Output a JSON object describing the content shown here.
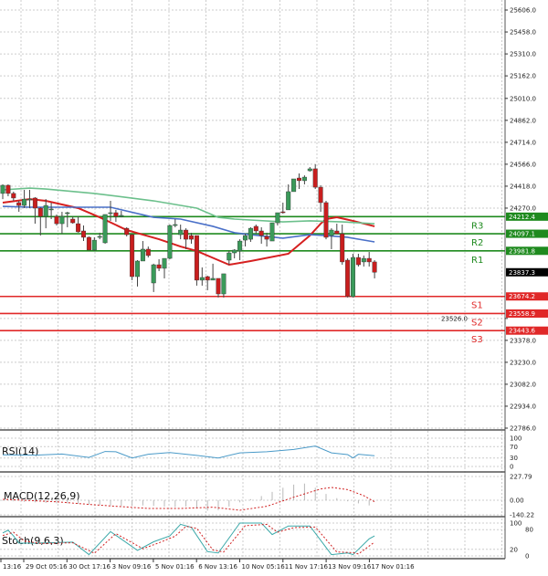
{
  "colors": {
    "bull": "#3a9a5a",
    "bear": "#c81e1e",
    "resistance": "#1e8a1e",
    "support": "#e02828",
    "ma_fast": "#d62020",
    "ma_mid": "#4a70c8",
    "ma_slow": "#6cc08c",
    "rsi": "#4a9ac8",
    "macd_hist": "#b8b8b8",
    "macd_signal": "#d02020",
    "stoch_k": "#3aa8a8",
    "stoch_d": "#d02020",
    "current_price": "#000000"
  },
  "chart_data": {
    "type": "candlestick",
    "price_axis": {
      "range": [
        22786.0,
        25606.0
      ],
      "ticks": [
        "25606.0",
        "25458.0",
        "25310.0",
        "25162.0",
        "25010.0",
        "24862.0",
        "24714.0",
        "24566.0",
        "24418.0",
        "24270.0",
        "23526.0",
        "23378.0",
        "23230.0",
        "23082.0",
        "22934.0",
        "22786.0"
      ]
    },
    "time_axis": {
      "ticks": [
        "13:16",
        "29 Oct 05:16",
        "30 Oct 17:16",
        "3 Nov 09:16",
        "5 Nov 01:16",
        "6 Nov 13:16",
        "10 Nov 05:16",
        "11 Nov 17:16",
        "13 Nov 09:16",
        "17 Nov 01:16"
      ]
    },
    "candles_ohlc": [
      [
        24369,
        24430,
        24331,
        24424
      ],
      [
        24424,
        24430,
        24350,
        24369
      ],
      [
        24369,
        24381,
        24319,
        24338
      ],
      [
        24307,
        24319,
        24245,
        24288
      ],
      [
        24288,
        24393,
        24270,
        24331
      ],
      [
        24325,
        24393,
        24270,
        24331
      ],
      [
        24338,
        24344,
        24165,
        24270
      ],
      [
        24270,
        24276,
        24085,
        24214
      ],
      [
        24214,
        24331,
        24134,
        24288
      ],
      [
        24258,
        24307,
        24196,
        24264
      ],
      [
        24214,
        24227,
        24153,
        24165
      ],
      [
        24165,
        24245,
        24097,
        24214
      ],
      [
        24233,
        24245,
        24141,
        24239
      ],
      [
        24196,
        24214,
        24165,
        24171
      ],
      [
        24165,
        24214,
        24104,
        24110
      ],
      [
        24116,
        24153,
        24048,
        24073
      ],
      [
        24073,
        24079,
        23987,
        23987
      ],
      [
        23987,
        24073,
        23981,
        24054
      ],
      [
        24073,
        24104,
        24060,
        24079
      ],
      [
        24036,
        24227,
        24030,
        24227
      ],
      [
        24233,
        24319,
        24184,
        24239
      ],
      [
        24239,
        24258,
        24177,
        24214
      ],
      [
        24214,
        24251,
        24208,
        24221
      ],
      [
        24134,
        24141,
        24079,
        24091
      ],
      [
        24091,
        24097,
        23784,
        23808
      ],
      [
        23808,
        23919,
        23741,
        23913
      ],
      [
        23913,
        24048,
        23913,
        23993
      ],
      [
        23993,
        24011,
        23937,
        23950
      ],
      [
        23765,
        23895,
        23704,
        23888
      ],
      [
        23888,
        23925,
        23845,
        23864
      ],
      [
        23864,
        23931,
        23796,
        23931
      ],
      [
        23931,
        24159,
        23925,
        24153
      ],
      [
        24153,
        24196,
        24141,
        24159
      ],
      [
        24091,
        24159,
        24060,
        24122
      ],
      [
        24122,
        24134,
        23993,
        24060
      ],
      [
        24085,
        24104,
        24030,
        24060
      ],
      [
        24085,
        24085,
        23747,
        23784
      ],
      [
        23784,
        23870,
        23747,
        23802
      ],
      [
        23808,
        23814,
        23716,
        23784
      ],
      [
        23784,
        23895,
        23784,
        23796
      ],
      [
        23796,
        23796,
        23667,
        23691
      ],
      [
        23691,
        23827,
        23667,
        23827
      ],
      [
        23919,
        23981,
        23888,
        23968
      ],
      [
        23968,
        23993,
        23931,
        23987
      ],
      [
        23981,
        24060,
        23919,
        24048
      ],
      [
        24054,
        24097,
        24011,
        24085
      ],
      [
        24060,
        24141,
        24042,
        24134
      ],
      [
        24147,
        24159,
        24097,
        24116
      ],
      [
        24116,
        24141,
        24030,
        24085
      ],
      [
        24079,
        24104,
        24011,
        24060
      ],
      [
        24048,
        24171,
        24048,
        24171
      ],
      [
        24171,
        24239,
        24153,
        24239
      ],
      [
        24245,
        24307,
        24233,
        24239
      ],
      [
        24258,
        24430,
        24258,
        24381
      ],
      [
        24381,
        24467,
        24381,
        24467
      ],
      [
        24473,
        24504,
        24399,
        24455
      ],
      [
        24455,
        24491,
        24430,
        24479
      ],
      [
        24522,
        24547,
        24516,
        24535
      ],
      [
        24535,
        24565,
        24399,
        24411
      ],
      [
        24411,
        24424,
        24245,
        24307
      ],
      [
        24307,
        24319,
        24060,
        24073
      ],
      [
        24085,
        24134,
        23993,
        24122
      ],
      [
        24116,
        24165,
        24097,
        24097
      ],
      [
        24097,
        24159,
        23888,
        23907
      ],
      [
        23919,
        23931,
        23667,
        23673
      ],
      [
        23673,
        23962,
        23667,
        23937
      ],
      [
        23937,
        23962,
        23876,
        23888
      ],
      [
        23907,
        23950,
        23876,
        23931
      ],
      [
        23931,
        23974,
        23876,
        23907
      ],
      [
        23907,
        23919,
        23796,
        23837.3
      ]
    ],
    "moving_averages": [
      {
        "key": "ma_fast",
        "points": [
          [
            1,
            24307
          ],
          [
            6,
            24331
          ],
          [
            9,
            24319
          ],
          [
            15,
            24270
          ],
          [
            19,
            24208
          ],
          [
            24,
            24122
          ],
          [
            30,
            24060
          ],
          [
            34,
            24011
          ],
          [
            37,
            23981
          ],
          [
            41,
            23919
          ],
          [
            43,
            23888
          ],
          [
            47,
            23913
          ],
          [
            54,
            23962
          ],
          [
            58,
            24085
          ],
          [
            60,
            24165
          ],
          [
            61,
            24196
          ],
          [
            63,
            24208
          ],
          [
            66,
            24184
          ],
          [
            70,
            24147
          ]
        ]
      },
      {
        "key": "ma_mid",
        "points": [
          [
            1,
            24282
          ],
          [
            6,
            24276
          ],
          [
            21,
            24276
          ],
          [
            29,
            24208
          ],
          [
            34,
            24196
          ],
          [
            40,
            24147
          ],
          [
            44,
            24104
          ],
          [
            47,
            24091
          ],
          [
            53,
            24067
          ],
          [
            58,
            24091
          ],
          [
            61,
            24085
          ],
          [
            65,
            24073
          ],
          [
            70,
            24042
          ]
        ]
      },
      {
        "key": "ma_slow",
        "points": [
          [
            1,
            24393
          ],
          [
            6,
            24405
          ],
          [
            9,
            24399
          ],
          [
            18,
            24369
          ],
          [
            29,
            24319
          ],
          [
            37,
            24270
          ],
          [
            41,
            24208
          ],
          [
            44,
            24196
          ],
          [
            53,
            24177
          ],
          [
            58,
            24184
          ],
          [
            64,
            24177
          ],
          [
            70,
            24165
          ]
        ]
      }
    ],
    "levels": [
      {
        "name": "R3",
        "price": "24212.4",
        "kind": "resistance"
      },
      {
        "name": "R2",
        "price": "24097.1",
        "kind": "resistance"
      },
      {
        "name": "R1",
        "price": "23981.8",
        "kind": "resistance"
      },
      {
        "name": "S1",
        "price": "23674.2",
        "kind": "support"
      },
      {
        "name": "S2",
        "price": "23558.9",
        "kind": "support"
      },
      {
        "name": "S3",
        "price": "23443.6",
        "kind": "support"
      }
    ],
    "current_price": "23837.3",
    "rsi": {
      "title": "RSI(14)",
      "ticks": [
        "100",
        "70",
        "30",
        "0"
      ],
      "points": [
        [
          1,
          41
        ],
        [
          7,
          40
        ],
        [
          12,
          44
        ],
        [
          17,
          32
        ],
        [
          20,
          53
        ],
        [
          22,
          52
        ],
        [
          25,
          30
        ],
        [
          28,
          43
        ],
        [
          32,
          49
        ],
        [
          37,
          39
        ],
        [
          41,
          30
        ],
        [
          45,
          48
        ],
        [
          50,
          52
        ],
        [
          55,
          60
        ],
        [
          59,
          72
        ],
        [
          62,
          48
        ],
        [
          65,
          42
        ],
        [
          66,
          30
        ],
        [
          67,
          43
        ],
        [
          70,
          38
        ]
      ]
    },
    "macd": {
      "title": "MACD(12,26,9)",
      "ticks": [
        "227.79",
        "0.00",
        "-140.22"
      ],
      "histogram_every_2": [
        -5,
        -10,
        -15,
        -20,
        -25,
        -30,
        -30,
        -35,
        -40,
        -45,
        -50,
        -55,
        -55,
        -50,
        -55,
        -60,
        -65,
        -60,
        -80,
        -100,
        -95,
        -60,
        -20,
        10,
        40,
        80,
        120,
        150,
        160,
        120,
        60,
        20,
        -10,
        -30,
        -50
      ],
      "signal_points": [
        [
          1,
          9
        ],
        [
          11,
          -15
        ],
        [
          18,
          -44
        ],
        [
          28,
          -79
        ],
        [
          34,
          -79
        ],
        [
          40,
          -67
        ],
        [
          45,
          -96
        ],
        [
          50,
          -58
        ],
        [
          55,
          29
        ],
        [
          60,
          108
        ],
        [
          62,
          123
        ],
        [
          65,
          102
        ],
        [
          68,
          44
        ],
        [
          70,
          -15
        ]
      ]
    },
    "stochastic": {
      "title": "Stoch(9,6,3)",
      "ticks": [
        "100",
        "80",
        "20",
        "0"
      ],
      "k_points": [
        [
          1,
          70
        ],
        [
          2,
          78
        ],
        [
          3,
          61
        ],
        [
          4,
          39
        ],
        [
          7,
          39
        ],
        [
          14,
          42
        ],
        [
          17,
          4
        ],
        [
          21,
          74
        ],
        [
          26,
          17
        ],
        [
          29,
          43
        ],
        [
          32,
          61
        ],
        [
          34,
          96
        ],
        [
          36,
          87
        ],
        [
          39,
          13
        ],
        [
          41,
          9
        ],
        [
          45,
          100
        ],
        [
          49,
          100
        ],
        [
          51,
          65
        ],
        [
          54,
          91
        ],
        [
          58,
          91
        ],
        [
          62,
          4
        ],
        [
          65,
          9
        ],
        [
          66,
          4
        ],
        [
          69,
          52
        ],
        [
          70,
          61
        ]
      ],
      "d_points": [
        [
          1,
          62
        ],
        [
          3,
          72
        ],
        [
          5,
          45
        ],
        [
          8,
          38
        ],
        [
          14,
          40
        ],
        [
          18,
          8
        ],
        [
          22,
          68
        ],
        [
          27,
          22
        ],
        [
          30,
          40
        ],
        [
          33,
          60
        ],
        [
          35,
          90
        ],
        [
          37,
          84
        ],
        [
          40,
          18
        ],
        [
          42,
          12
        ],
        [
          46,
          92
        ],
        [
          50,
          96
        ],
        [
          52,
          72
        ],
        [
          55,
          86
        ],
        [
          59,
          88
        ],
        [
          63,
          12
        ],
        [
          66,
          10
        ],
        [
          67,
          6
        ],
        [
          70,
          42
        ]
      ]
    }
  }
}
